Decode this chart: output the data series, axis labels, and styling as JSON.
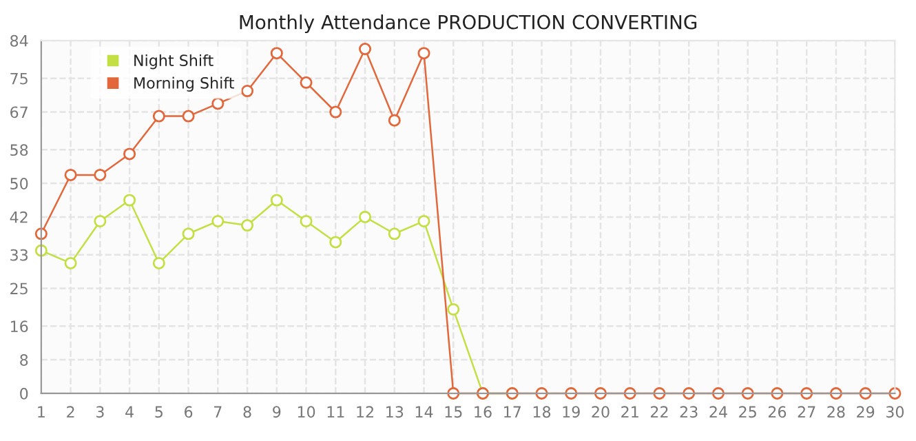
{
  "chart_data": {
    "type": "line",
    "title": "Monthly Attendance PRODUCTION CONVERTING",
    "x": [
      1,
      2,
      3,
      4,
      5,
      6,
      7,
      8,
      9,
      10,
      11,
      12,
      13,
      14,
      15,
      16,
      17,
      18,
      19,
      20,
      21,
      22,
      23,
      24,
      25,
      26,
      27,
      28,
      29,
      30
    ],
    "series": [
      {
        "name": "Night Shift",
        "color": "#c2e043",
        "values": [
          34,
          31,
          41,
          46,
          31,
          38,
          41,
          40,
          46,
          41,
          36,
          42,
          38,
          41,
          20,
          0,
          0,
          null,
          null,
          null,
          null,
          null,
          null,
          null,
          null,
          null,
          null,
          null,
          null,
          null
        ]
      },
      {
        "name": "Morning Shift",
        "color": "#e2673a",
        "values": [
          38,
          52,
          52,
          57,
          66,
          66,
          69,
          72,
          81,
          74,
          67,
          82,
          65,
          81,
          0,
          0,
          0,
          0,
          0,
          0,
          0,
          0,
          0,
          0,
          0,
          0,
          0,
          0,
          0,
          0
        ]
      }
    ],
    "xlim": [
      1,
      30
    ],
    "xticks": [
      1,
      2,
      3,
      4,
      5,
      6,
      7,
      8,
      9,
      10,
      11,
      12,
      13,
      14,
      15,
      16,
      17,
      18,
      19,
      20,
      21,
      22,
      23,
      24,
      25,
      26,
      27,
      28,
      29,
      30
    ],
    "ylim": [
      0,
      84
    ],
    "yticks": [
      0,
      8,
      16,
      25,
      33,
      42,
      50,
      58,
      67,
      75,
      84
    ],
    "grid": true,
    "legend": "top left",
    "marker": "circle",
    "line_style": "solid"
  }
}
